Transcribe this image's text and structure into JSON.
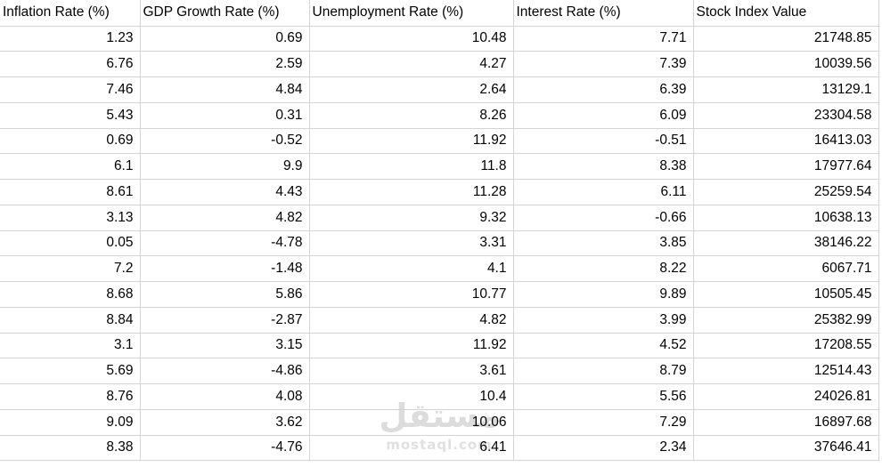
{
  "table": {
    "headers": [
      "Inflation Rate (%)",
      "GDP Growth Rate (%)",
      "Unemployment Rate (%)",
      "Interest Rate (%)",
      "Stock Index Value"
    ],
    "rows": [
      [
        "1.23",
        "0.69",
        "10.48",
        "7.71",
        "21748.85"
      ],
      [
        "6.76",
        "2.59",
        "4.27",
        "7.39",
        "10039.56"
      ],
      [
        "7.46",
        "4.84",
        "2.64",
        "6.39",
        "13129.1"
      ],
      [
        "5.43",
        "0.31",
        "8.26",
        "6.09",
        "23304.58"
      ],
      [
        "0.69",
        "-0.52",
        "11.92",
        "-0.51",
        "16413.03"
      ],
      [
        "6.1",
        "9.9",
        "11.8",
        "8.38",
        "17977.64"
      ],
      [
        "8.61",
        "4.43",
        "11.28",
        "6.11",
        "25259.54"
      ],
      [
        "3.13",
        "4.82",
        "9.32",
        "-0.66",
        "10638.13"
      ],
      [
        "0.05",
        "-4.78",
        "3.31",
        "3.85",
        "38146.22"
      ],
      [
        "7.2",
        "-1.48",
        "4.1",
        "8.22",
        "6067.71"
      ],
      [
        "8.68",
        "5.86",
        "10.77",
        "9.89",
        "10505.45"
      ],
      [
        "8.84",
        "-2.87",
        "4.82",
        "3.99",
        "25382.99"
      ],
      [
        "3.1",
        "3.15",
        "11.92",
        "4.52",
        "17208.55"
      ],
      [
        "5.69",
        "-4.86",
        "3.61",
        "8.79",
        "12514.43"
      ],
      [
        "8.76",
        "4.08",
        "10.4",
        "5.56",
        "24026.81"
      ],
      [
        "9.09",
        "3.62",
        "10.06",
        "7.29",
        "16897.68"
      ],
      [
        "8.38",
        "-4.76",
        "6.41",
        "2.34",
        "37646.41"
      ]
    ]
  },
  "watermark": {
    "logo_text": "مستقل",
    "domain_text": "mostaql.com"
  },
  "colors": {
    "gridline": "#d4d4d4",
    "text": "#000000",
    "background": "#ffffff",
    "watermark": "#dcdcdc"
  }
}
